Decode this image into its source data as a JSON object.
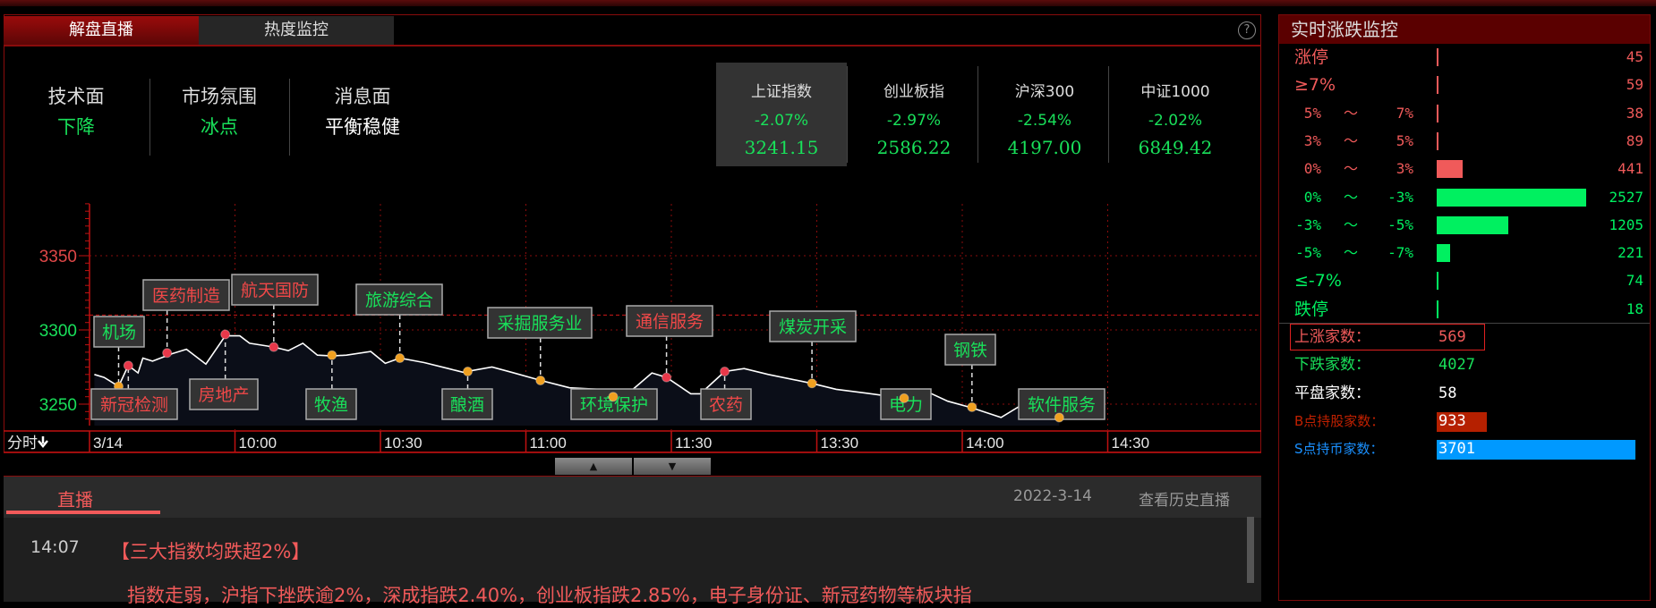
{
  "tabs": [
    {
      "label": "解盘直播",
      "active": true
    },
    {
      "label": "热度监控",
      "active": false
    }
  ],
  "help_icon": "question-circle-icon",
  "sentiment": [
    {
      "label": "技术面",
      "value": "下降",
      "color": "#19e05a"
    },
    {
      "label": "市场氛围",
      "value": "冰点",
      "color": "#19e05a"
    },
    {
      "label": "消息面",
      "value": "平衡稳健",
      "color": "#ffffff"
    }
  ],
  "indices": [
    {
      "name": "上证指数",
      "change": "-2.07%",
      "value": "3241.15",
      "selected": true
    },
    {
      "name": "创业板指",
      "change": "-2.97%",
      "value": "2586.22",
      "selected": false
    },
    {
      "name": "沪深300",
      "change": "-2.54%",
      "value": "4197.00",
      "selected": false
    },
    {
      "name": "中证1000",
      "change": "-2.02%",
      "value": "6849.42",
      "selected": false
    }
  ],
  "chart_toolbar": {
    "period": "分时",
    "period_icon": "arrow-down-icon"
  },
  "chart_data": {
    "type": "line",
    "x_ticks": [
      "3/14",
      "10:00",
      "10:30",
      "11:00",
      "11:30",
      "13:30",
      "14:00",
      "14:30"
    ],
    "y_ticks": [
      {
        "value": 3350,
        "color": "#e04848"
      },
      {
        "value": 3300,
        "color": "#19e05a"
      },
      {
        "value": 3250,
        "color": "#19e05a"
      }
    ],
    "reference_line": 3310,
    "grid": true,
    "line_color": "#ffffff",
    "series": [
      {
        "x": [
          "09:31",
          "09:33",
          "09:36",
          "09:38",
          "09:40",
          "09:41",
          "09:43",
          "09:47",
          "09:50",
          "09:54",
          "09:58",
          "10:01",
          "10:03",
          "10:08",
          "10:11",
          "10:14",
          "10:17",
          "10:20",
          "10:23",
          "10:28",
          "10:31",
          "10:34",
          "10:39",
          "10:44",
          "10:47",
          "10:53",
          "10:57",
          "11:03",
          "11:09",
          "11:15",
          "11:18",
          "11:21",
          "11:26",
          "11:29",
          "13:04",
          "13:06",
          "13:11",
          "13:15",
          "13:20",
          "13:29",
          "13:34",
          "13:40",
          "13:48",
          "13:53",
          "13:57",
          "14:02",
          "14:08",
          "14:12",
          "14:20"
        ],
        "y": [
          3270,
          3268,
          3262,
          3276,
          3271,
          3281,
          3279,
          3284,
          3287,
          3277,
          3296,
          3296,
          3291,
          3288.5,
          3286,
          3291,
          3283,
          3282.5,
          3283,
          3285.5,
          3277.5,
          3281,
          3278,
          3274,
          3271.5,
          3275,
          3271.5,
          3266,
          3261,
          3260,
          3255,
          3257,
          3271,
          3268,
          3257,
          3257,
          3272,
          3274,
          3270,
          3264,
          3260,
          3257.5,
          3254,
          3258,
          3252,
          3247.5,
          3241,
          3249,
          3241
        ]
      }
    ],
    "annotations": [
      {
        "label": "机场",
        "trend": "down",
        "time": "09:36",
        "value": 3262
      },
      {
        "label": "新冠检测",
        "trend": "up",
        "time": "09:38",
        "value": 3276
      },
      {
        "label": "医药制造",
        "trend": "up",
        "time": "09:46",
        "value": 3284.5
      },
      {
        "label": "房地产",
        "trend": "up",
        "time": "09:58",
        "value": 3297
      },
      {
        "label": "航天国防",
        "trend": "up",
        "time": "10:08",
        "value": 3288.5
      },
      {
        "label": "牧渔",
        "trend": "down",
        "time": "10:20",
        "value": 3283
      },
      {
        "label": "旅游综合",
        "trend": "down",
        "time": "10:34",
        "value": 3281
      },
      {
        "label": "酿酒",
        "trend": "down",
        "time": "10:48",
        "value": 3272
      },
      {
        "label": "采掘服务业",
        "trend": "down",
        "time": "11:03",
        "value": 3266
      },
      {
        "label": "环境保护",
        "trend": "down",
        "time": "11:18",
        "value": 3255
      },
      {
        "label": "通信服务",
        "trend": "up",
        "time": "11:29",
        "value": 3268
      },
      {
        "label": "农药",
        "trend": "up",
        "time": "13:11",
        "value": 3272
      },
      {
        "label": "煤炭开采",
        "trend": "down",
        "time": "13:29",
        "value": 3264
      },
      {
        "label": "电力",
        "trend": "down",
        "time": "13:48",
        "value": 3254
      },
      {
        "label": "钢铁",
        "trend": "down",
        "time": "14:02",
        "value": 3248
      },
      {
        "label": "软件服务",
        "trend": "down",
        "time": "14:20",
        "value": 3241
      }
    ],
    "colors": {
      "up_text": "#f04848",
      "down_text": "#19e05a",
      "up_dot": "#e8384a",
      "down_dot": "#f0a020",
      "grid": "#8a0c0c"
    }
  },
  "scroll": {
    "up_icon": "triangle-up-icon",
    "down_icon": "triangle-down-icon",
    "up": "▲",
    "down": "▼"
  },
  "live": {
    "tab": "直播",
    "date": "2022-3-14",
    "history_link": "查看历史直播",
    "items": [
      {
        "time": "14:07",
        "headline": "【三大指数均跌超2%】",
        "body": "指数走弱，沪指下挫跌逾2%，深成指跌2.40%，创业板指跌2.85%，电子身份证、新冠药物等板块指"
      }
    ]
  },
  "monitor": {
    "title": "实时涨跌监控",
    "max_count": 2527,
    "rows": [
      {
        "single": "涨停",
        "count": 45,
        "color": "#f05a5a"
      },
      {
        "single": "≥7%",
        "count": 59,
        "color": "#f05a5a"
      },
      {
        "from": "5%",
        "sep": "～",
        "to": "7%",
        "count": 38,
        "color": "#f05a5a"
      },
      {
        "from": "3%",
        "sep": "～",
        "to": "5%",
        "count": 89,
        "color": "#f05a5a"
      },
      {
        "from": "0%",
        "sep": "～",
        "to": "3%",
        "count": 441,
        "color": "#f05a5a"
      },
      {
        "from": "0%",
        "sep": "～",
        "to": "-3%",
        "count": 2527,
        "color": "#00f060"
      },
      {
        "from": "-3%",
        "sep": "～",
        "to": "-5%",
        "count": 1205,
        "color": "#00f060"
      },
      {
        "from": "-5%",
        "sep": "～",
        "to": "-7%",
        "count": 221,
        "color": "#00f060"
      },
      {
        "single": "≤-7%",
        "count": 74,
        "color": "#00f060"
      },
      {
        "single": "跌停",
        "count": 18,
        "color": "#00f060"
      }
    ],
    "summary": [
      {
        "label": "上涨家数：",
        "value": "569",
        "color": "#f05a5a"
      },
      {
        "label": "下跌家数：",
        "value": "4027",
        "color": "#19e05a"
      },
      {
        "label": "平盘家数：",
        "value": "58",
        "color": "#ffffff"
      },
      {
        "label": "B点持股家数：",
        "value": "933",
        "color": "#c02000",
        "bar_color": "#b52000"
      },
      {
        "label": "S点持币家数：",
        "value": "3701",
        "color": "#1a90ff",
        "bar_color": "#0099ff"
      }
    ]
  }
}
